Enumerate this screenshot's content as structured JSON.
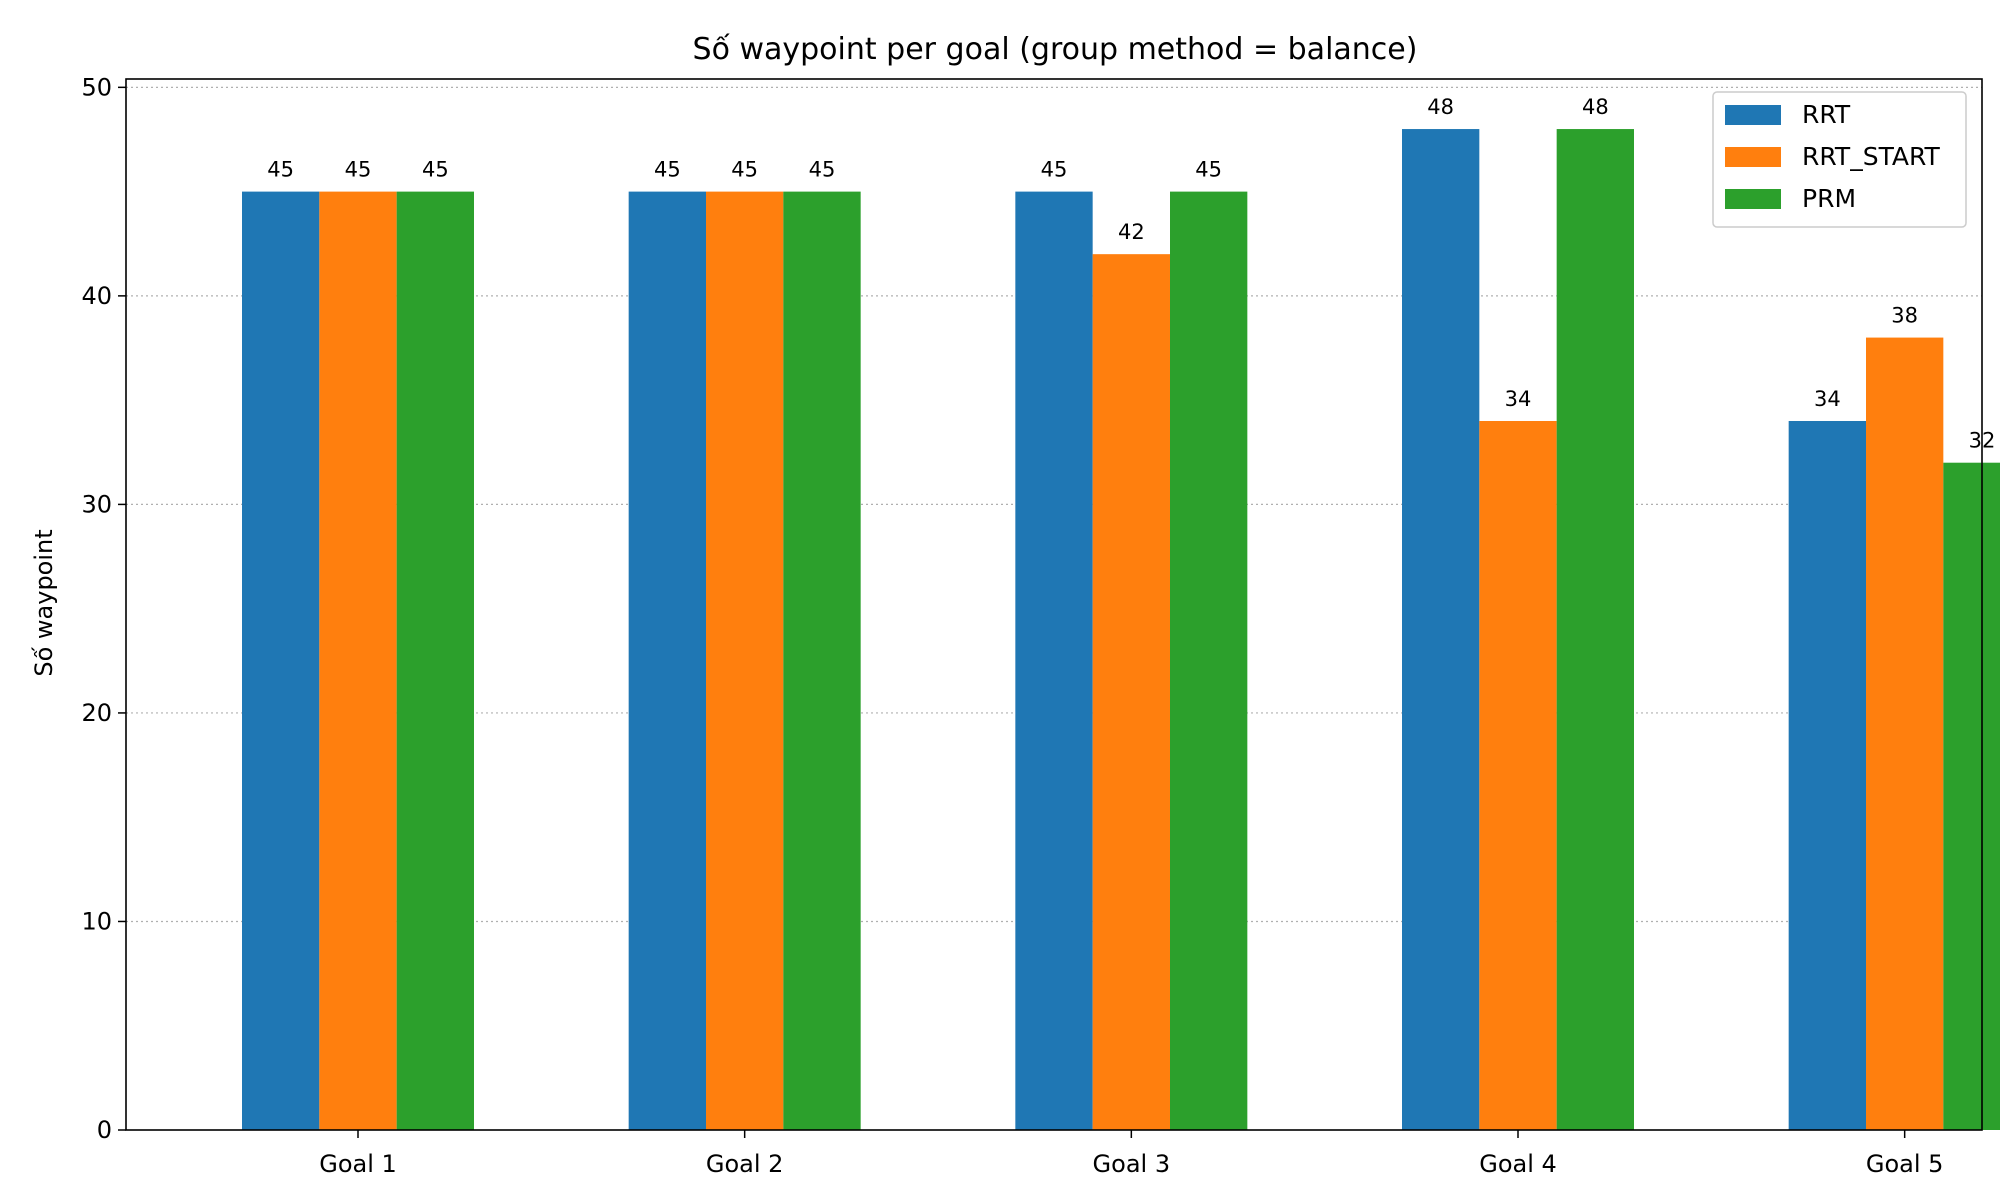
{
  "chart_data": {
    "type": "bar",
    "title": "Số waypoint per goal  (group method = balance)",
    "xlabel": "",
    "ylabel": "Số waypoint",
    "categories": [
      "Goal 1",
      "Goal 2",
      "Goal 3",
      "Goal 4",
      "Goal 5"
    ],
    "series": [
      {
        "name": "RRT",
        "color": "#1f77b4",
        "values": [
          45,
          45,
          45,
          48,
          34
        ]
      },
      {
        "name": "RRT_START",
        "color": "#ff7f0e",
        "values": [
          45,
          45,
          42,
          34,
          38
        ]
      },
      {
        "name": "PRM",
        "color": "#2ca02c",
        "values": [
          45,
          45,
          45,
          48,
          32
        ]
      }
    ],
    "ylim": [
      0,
      50.4
    ],
    "yticks": [
      0,
      10,
      20,
      30,
      40,
      50
    ],
    "grid": "y-dotted",
    "legend": "top-right"
  }
}
